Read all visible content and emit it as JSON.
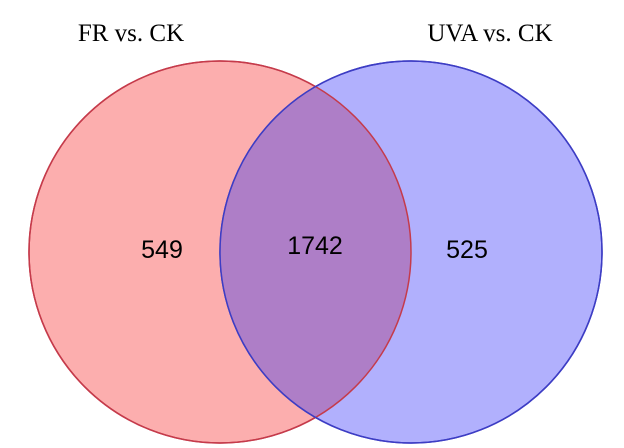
{
  "venn": {
    "sets": [
      {
        "title": "FR vs. CK",
        "only_count": "549",
        "fill": "#fcaeae",
        "stroke": "#c53b4b"
      },
      {
        "title": "UVA vs. CK",
        "only_count": "525",
        "fill": "#b1b0fd",
        "stroke": "#3d3dc4"
      }
    ],
    "intersection": {
      "count": "1742",
      "fill": "#ae7ec7"
    }
  }
}
